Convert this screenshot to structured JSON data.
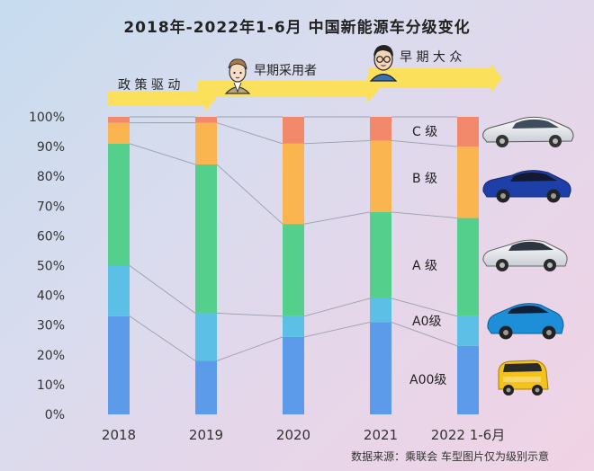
{
  "title": "2018年-2022年1-6月 中国新能源车分级变化",
  "stages": [
    "政 策 驱 动",
    "早期采用者",
    "早 期 大 众"
  ],
  "source_note": "数据来源：乘联会  车型图片仅为级别示意",
  "colors": {
    "A00级": "#5b9bea",
    "A0级": "#5cc0e6",
    "A 级": "#55cf8c",
    "B 级": "#fbb550",
    "C 级": "#f3896b",
    "arrow": "#fbe05c"
  },
  "chart_data": {
    "type": "bar",
    "stacked": true,
    "categories": [
      "2018",
      "2019",
      "2020",
      "2021",
      "2022 1-6月"
    ],
    "series": [
      {
        "name": "A00级",
        "values": [
          33,
          18,
          26,
          31,
          23
        ]
      },
      {
        "name": "A0级",
        "values": [
          17,
          16,
          7,
          8,
          10
        ]
      },
      {
        "name": "A 级",
        "values": [
          41,
          50,
          31,
          29,
          33
        ]
      },
      {
        "name": "B 级",
        "values": [
          7,
          14,
          27,
          24,
          24
        ]
      },
      {
        "name": "C 级",
        "values": [
          2,
          2,
          9,
          8,
          10
        ]
      }
    ],
    "ytick_labels": [
      "0%",
      "10%",
      "20%",
      "30%",
      "40%",
      "50%",
      "60%",
      "70%",
      "80%",
      "90%",
      "100%"
    ],
    "ylim": [
      0,
      100
    ],
    "grid": false,
    "legend": "right, next to the last bar, with car illustrations"
  }
}
